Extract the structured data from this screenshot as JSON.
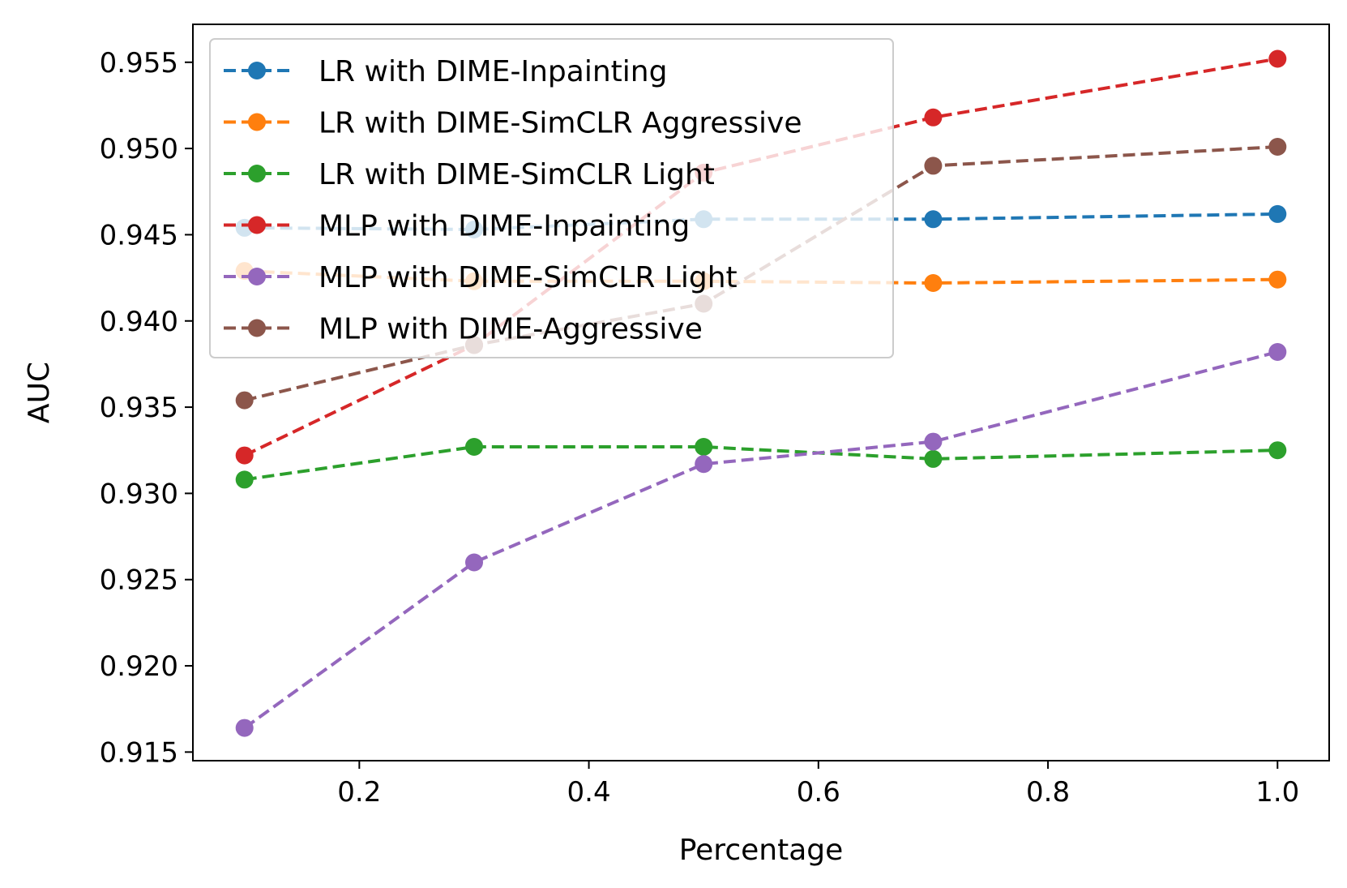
{
  "chart_data": {
    "type": "line",
    "title": "",
    "xlabel": "Percentage",
    "ylabel": "AUC",
    "xlim": [
      0.055,
      1.045
    ],
    "ylim": [
      0.9145,
      0.9572
    ],
    "xticks": [
      0.2,
      0.4,
      0.6,
      0.8,
      1.0
    ],
    "xtick_labels": [
      "0.2",
      "0.4",
      "0.6",
      "0.8",
      "1.0"
    ],
    "yticks": [
      0.915,
      0.92,
      0.925,
      0.93,
      0.935,
      0.94,
      0.945,
      0.95,
      0.955
    ],
    "ytick_labels": [
      "0.915",
      "0.920",
      "0.925",
      "0.930",
      "0.935",
      "0.940",
      "0.945",
      "0.950",
      "0.955"
    ],
    "grid": false,
    "legend_position": "upper-left",
    "line_style": "dashed",
    "marker": "circle",
    "x": [
      0.1,
      0.3,
      0.5,
      0.7,
      1.0
    ],
    "series": [
      {
        "name": "LR with DIME-Inpainting",
        "color": "#1f77b4",
        "values": [
          0.9454,
          0.9453,
          0.9459,
          0.9459,
          0.9462
        ]
      },
      {
        "name": "LR with DIME-SimCLR Aggressive",
        "color": "#ff7f0e",
        "values": [
          0.9429,
          0.9423,
          0.9423,
          0.9422,
          0.9424
        ]
      },
      {
        "name": "LR with DIME-SimCLR Light",
        "color": "#2ca02c",
        "values": [
          0.9308,
          0.9327,
          0.9327,
          0.932,
          0.9325
        ]
      },
      {
        "name": "MLP with DIME-Inpainting",
        "color": "#d62728",
        "values": [
          0.9322,
          0.9386,
          0.9486,
          0.9518,
          0.9552
        ]
      },
      {
        "name": "MLP with DIME-SimCLR Light",
        "color": "#9467bd",
        "values": [
          0.9164,
          0.926,
          0.9317,
          0.933,
          0.9382
        ]
      },
      {
        "name": "MLP with DIME-Aggressive",
        "color": "#8c564b",
        "values": [
          0.9354,
          0.9386,
          0.941,
          0.949,
          0.9501
        ]
      }
    ]
  }
}
